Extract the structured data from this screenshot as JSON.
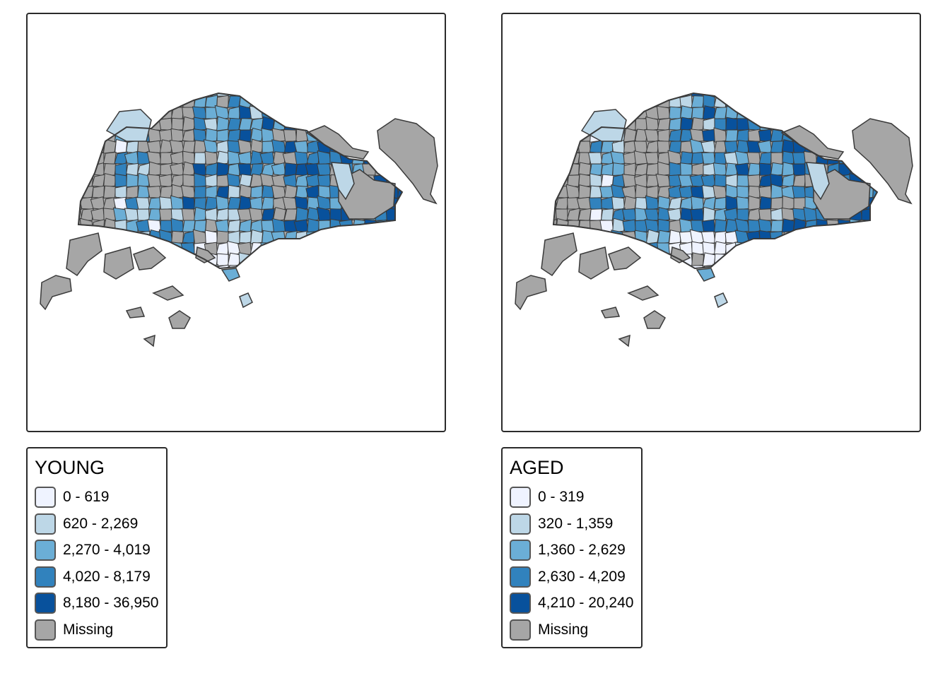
{
  "colors": {
    "class_1": "#eff3ff",
    "class_2": "#bdd7e7",
    "class_3": "#6baed6",
    "class_4": "#3182bd",
    "class_5": "#08519c",
    "missing": "#a6a6a6",
    "border": "#3a3a3a"
  },
  "maps": [
    {
      "id": "young",
      "legend": {
        "title": "YOUNG",
        "items": [
          {
            "label": "0 - 619",
            "color": "#eff3ff"
          },
          {
            "label": "620 - 2,269",
            "color": "#bdd7e7"
          },
          {
            "label": "2,270 - 4,019",
            "color": "#6baed6"
          },
          {
            "label": "4,020 - 8,179",
            "color": "#3182bd"
          },
          {
            "label": "8,180 - 36,950",
            "color": "#08519c"
          },
          {
            "label": "Missing",
            "color": "#a6a6a6"
          }
        ]
      }
    },
    {
      "id": "aged",
      "legend": {
        "title": "AGED",
        "items": [
          {
            "label": "0 - 319",
            "color": "#eff3ff"
          },
          {
            "label": "320 - 1,359",
            "color": "#bdd7e7"
          },
          {
            "label": "1,360 - 2,629",
            "color": "#6baed6"
          },
          {
            "label": "2,630 - 4,209",
            "color": "#3182bd"
          },
          {
            "label": "4,210 - 20,240",
            "color": "#08519c"
          },
          {
            "label": "Missing",
            "color": "#a6a6a6"
          }
        ]
      }
    }
  ]
}
